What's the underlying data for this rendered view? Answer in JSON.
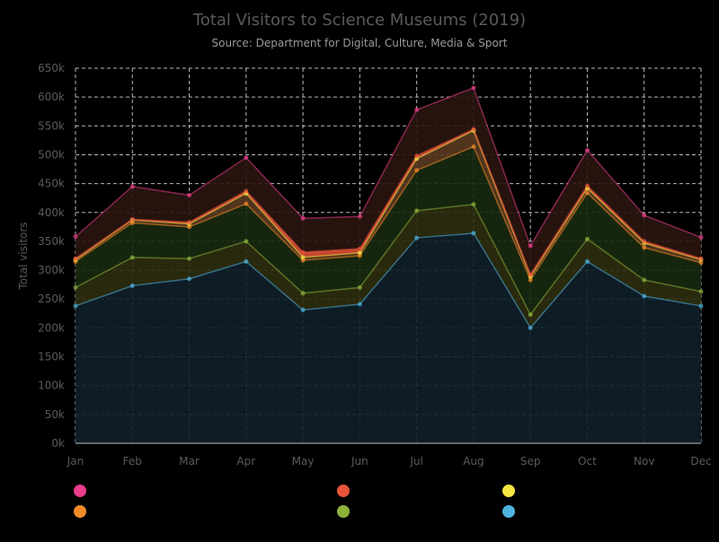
{
  "chart_data": {
    "type": "area",
    "stacked": true,
    "title": "Total Visitors to Science Museums (2019)",
    "subtitle": "Source: Department for Digital, Culture, Media & Sport",
    "xlabel": "",
    "ylabel": "Total visitors",
    "categories": [
      "Jan",
      "Feb",
      "Mar",
      "Apr",
      "May",
      "Jun",
      "Jul",
      "Aug",
      "Sep",
      "Oct",
      "Nov",
      "Dec"
    ],
    "ylim": [
      0,
      650000
    ],
    "yticks": [
      0,
      50000,
      100000,
      150000,
      200000,
      250000,
      300000,
      350000,
      400000,
      450000,
      500000,
      550000,
      600000,
      650000
    ],
    "ytick_labels": [
      "0k",
      "50k",
      "100k",
      "150k",
      "200k",
      "250k",
      "300k",
      "350k",
      "400k",
      "450k",
      "500k",
      "550k",
      "600k",
      "650k"
    ],
    "grid": true,
    "legend_position": "bottom",
    "background": "#000000",
    "series": [
      {
        "color": "#4fb3e0",
        "fill": "#0f1f2a",
        "values": [
          238000,
          273000,
          285000,
          315000,
          231000,
          241000,
          356000,
          364000,
          200000,
          315000,
          255000,
          238000
        ]
      },
      {
        "color": "#8db33a",
        "fill": "#2e2e10",
        "values": [
          32000,
          49000,
          35000,
          35000,
          29000,
          29000,
          47000,
          50000,
          23000,
          39000,
          28000,
          25000
        ]
      },
      {
        "color": "#f28c28",
        "fill": "#182a10",
        "values": [
          45000,
          60000,
          55000,
          65000,
          57000,
          55000,
          70000,
          100000,
          60000,
          80000,
          56000,
          50000
        ]
      },
      {
        "color": "#f5e642",
        "fill": "#5a3a20",
        "values": [
          3000,
          5000,
          5000,
          18000,
          5000,
          5000,
          20000,
          28000,
          6000,
          8000,
          8000,
          5000
        ]
      },
      {
        "color": "#e8543a",
        "fill": "#e8543a",
        "values": [
          2000,
          1000,
          3000,
          4000,
          9000,
          7000,
          5000,
          2000,
          3000,
          4000,
          3000,
          2000
        ]
      },
      {
        "color": "#e83e8c",
        "fill": "#2a1510",
        "values": [
          38000,
          57000,
          47000,
          58000,
          59000,
          56000,
          80000,
          72000,
          50000,
          62000,
          45000,
          37000
        ]
      }
    ]
  }
}
